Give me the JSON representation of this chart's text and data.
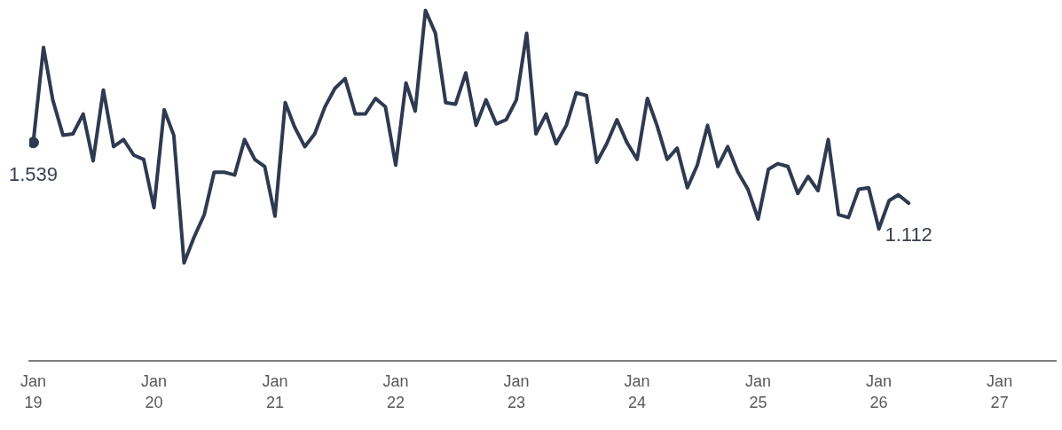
{
  "chart_data": {
    "type": "line",
    "x": [
      "2019-01",
      "2019-02",
      "2019-03",
      "2019-04",
      "2019-05",
      "2019-06",
      "2019-07",
      "2019-08",
      "2019-09",
      "2019-10",
      "2019-11",
      "2019-12",
      "2020-01",
      "2020-02",
      "2020-03",
      "2020-04",
      "2020-05",
      "2020-06",
      "2020-07",
      "2020-08",
      "2020-09",
      "2020-10",
      "2020-11",
      "2020-12",
      "2021-01",
      "2021-02",
      "2021-03",
      "2021-04",
      "2021-05",
      "2021-06",
      "2021-07",
      "2021-08",
      "2021-09",
      "2021-10",
      "2021-11",
      "2021-12",
      "2022-01",
      "2022-02",
      "2022-03",
      "2022-04",
      "2022-05",
      "2022-06",
      "2022-07",
      "2022-08",
      "2022-09",
      "2022-10",
      "2022-11",
      "2022-12",
      "2023-01",
      "2023-02",
      "2023-03",
      "2023-04",
      "2023-05",
      "2023-06",
      "2023-07",
      "2023-08",
      "2023-09",
      "2023-10",
      "2023-11",
      "2023-12",
      "2024-01",
      "2024-02",
      "2024-03",
      "2024-04",
      "2024-05",
      "2024-06",
      "2024-07",
      "2024-08",
      "2024-09",
      "2024-10",
      "2024-11",
      "2024-12",
      "2025-01",
      "2025-02",
      "2025-03",
      "2025-04",
      "2025-05",
      "2025-06",
      "2025-07",
      "2025-08",
      "2025-09",
      "2025-10",
      "2025-11",
      "2025-12",
      "2026-01",
      "2026-02",
      "2026-03",
      "2026-04"
    ],
    "series": [
      {
        "color": "#2e3a50",
        "values": [
          1.539,
          2.21,
          1.84,
          1.59,
          1.6,
          1.74,
          1.41,
          1.91,
          1.51,
          1.56,
          1.45,
          1.42,
          1.08,
          1.77,
          1.59,
          0.69,
          0.87,
          1.03,
          1.33,
          1.33,
          1.31,
          1.56,
          1.42,
          1.37,
          1.02,
          1.82,
          1.65,
          1.51,
          1.6,
          1.79,
          1.92,
          1.99,
          1.74,
          1.74,
          1.85,
          1.79,
          1.38,
          1.96,
          1.76,
          2.47,
          2.31,
          1.82,
          1.81,
          2.03,
          1.66,
          1.84,
          1.67,
          1.7,
          1.84,
          2.31,
          1.6,
          1.74,
          1.53,
          1.66,
          1.89,
          1.87,
          1.4,
          1.53,
          1.7,
          1.54,
          1.42,
          1.85,
          1.66,
          1.42,
          1.5,
          1.22,
          1.38,
          1.66,
          1.37,
          1.51,
          1.33,
          1.21,
          1.0,
          1.35,
          1.39,
          1.37,
          1.18,
          1.3,
          1.2,
          1.56,
          1.03,
          1.01,
          1.21,
          1.22,
          0.93,
          1.13,
          1.17,
          1.112
        ],
        "value_labels": [
          "1.539",
          null,
          null,
          null,
          null,
          null,
          null,
          null,
          null,
          null,
          null,
          null,
          null,
          null,
          null,
          null,
          null,
          null,
          null,
          null,
          null,
          null,
          null,
          null,
          null,
          null,
          null,
          null,
          null,
          null,
          null,
          null,
          null,
          null,
          null,
          null,
          null,
          null,
          null,
          null,
          null,
          null,
          null,
          null,
          null,
          null,
          null,
          null,
          null,
          null,
          null,
          null,
          null,
          null,
          null,
          null,
          null,
          null,
          null,
          null,
          null,
          null,
          null,
          null,
          null,
          null,
          null,
          null,
          null,
          null,
          null,
          null,
          null,
          null,
          null,
          null,
          null,
          null,
          null,
          null,
          null,
          null,
          null,
          null,
          null,
          null,
          null,
          "1.112"
        ]
      },
      {
        "type": "scatter",
        "color": "#2e3a50",
        "x": [
          "2019-01"
        ],
        "values": [
          1.539
        ],
        "marker": "circle"
      }
    ],
    "xlim": [
      "2018-12-20",
      "2027-06-20"
    ],
    "xticks": [
      {
        "value": "2019-01",
        "label": "Jan 19"
      },
      {
        "value": "2020-01",
        "label": "Jan 20"
      },
      {
        "value": "2021-01",
        "label": "Jan 21"
      },
      {
        "value": "2022-01",
        "label": "Jan 22"
      },
      {
        "value": "2023-01",
        "label": "Jan 23"
      },
      {
        "value": "2024-01",
        "label": "Jan 24"
      },
      {
        "value": "2025-01",
        "label": "Jan 25"
      },
      {
        "value": "2026-01",
        "label": "Jan 26"
      },
      {
        "value": "2027-01",
        "label": "Jan 27"
      }
    ],
    "tick_labels": "x",
    "grid": false,
    "legend": false
  }
}
